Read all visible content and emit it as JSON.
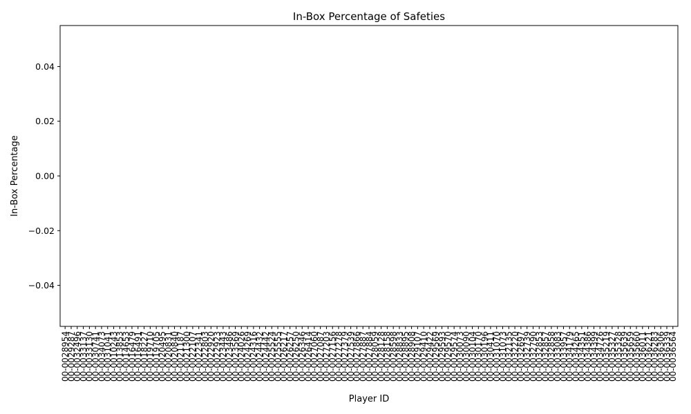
{
  "chart_data": {
    "type": "bar",
    "title": "In-Box Percentage of Safeties",
    "xlabel": "Player ID",
    "ylabel": "In-Box Percentage",
    "ylim": [
      -0.055,
      0.055
    ],
    "yticks": [
      -0.04,
      -0.02,
      0.0,
      0.02,
      0.04
    ],
    "ytick_labels": [
      "−0.04",
      "−0.02",
      "0.00",
      "0.02",
      "0.04"
    ],
    "grid": false,
    "categories": [
      "00-0028954",
      "00-0029287",
      "00-0032496",
      "00-0033137",
      "00-0033130",
      "00-0030741",
      "00-0034073",
      "00-0031041",
      "00-0010243",
      "00-0013853",
      "00-0014653",
      "00-0016479",
      "00-0016491",
      "00-0018227",
      "00-0019710",
      "00-0019705",
      "00-0020495",
      "00-0020831",
      "00-0020840",
      "00-0021187",
      "00-0021300",
      "00-0022107",
      "00-0022341",
      "00-0022803",
      "00-0022920",
      "00-0022923",
      "00-0023443",
      "00-0023486",
      "00-0023569",
      "00-0024026",
      "00-0024269",
      "00-0024316",
      "00-0024432",
      "00-0024442",
      "00-0025524",
      "00-0025555",
      "00-0026217",
      "00-0026257",
      "00-0026250",
      "00-0026346",
      "00-0026414",
      "00-0027060",
      "00-0027087",
      "00-0027203",
      "00-0027156",
      "00-0027278",
      "00-0027379",
      "00-0027539",
      "00-0027866",
      "00-0027887",
      "00-0027884",
      "00-0028059",
      "00-0028128",
      "00-0028158",
      "00-0028598",
      "00-0028833",
      "00-0028895",
      "00-0028908",
      "00-0029107",
      "00-0029410",
      "00-0029422",
      "00-0029569",
      "00-0029593",
      "00-0029570",
      "00-0029574",
      "00-0030073",
      "00-0030090",
      "00-0030104",
      "00-0030170",
      "00-0030196",
      "00-0030411",
      "00-0031070",
      "00-0031073",
      "00-0032135",
      "00-0032220",
      "00-0032697",
      "00-0032739",
      "00-0032790",
      "00-0032853",
      "00-0032857",
      "00-0032858",
      "00-0033083",
      "00-0033957",
      "00-0034179",
      "00-0034265",
      "00-0034351",
      "00-0034386",
      "00-0034399",
      "00-0034726",
      "00-0035219",
      "00-0035327",
      "00-0035328",
      "00-0035639",
      "00-0035659",
      "00-0035660",
      "00-0036011",
      "00-0036221",
      "00-0036283",
      "00-0036306",
      "00-0036339",
      "00-0036564"
    ],
    "values": [
      0,
      0,
      0,
      0,
      0,
      0,
      0,
      0,
      0,
      0,
      0,
      0,
      0,
      0,
      0,
      0,
      0,
      0,
      0,
      0,
      0,
      0,
      0,
      0,
      0,
      0,
      0,
      0,
      0,
      0,
      0,
      0,
      0,
      0,
      0,
      0,
      0,
      0,
      0,
      0,
      0,
      0,
      0,
      0,
      0,
      0,
      0,
      0,
      0,
      0,
      0,
      0,
      0,
      0,
      0,
      0,
      0,
      0,
      0,
      0,
      0,
      0,
      0,
      0,
      0,
      0,
      0,
      0,
      0,
      0,
      0,
      0,
      0,
      0,
      0,
      0,
      0,
      0,
      0,
      0,
      0,
      0,
      0,
      0,
      0,
      0,
      0,
      0,
      0,
      0,
      0,
      0,
      0,
      0,
      0,
      0,
      0,
      0,
      0,
      0,
      0
    ]
  }
}
